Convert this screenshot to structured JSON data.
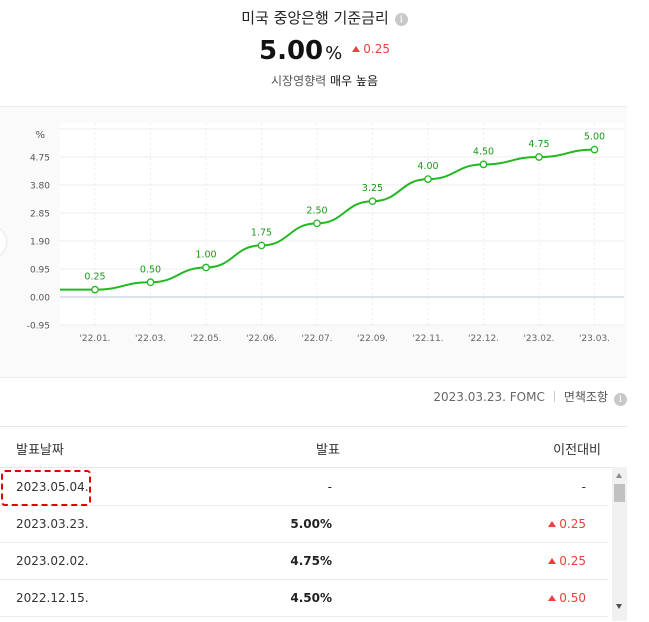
{
  "header": {
    "title": "미국 중앙은행 기준금리",
    "info_icon": "i",
    "rate_value": "5.00",
    "rate_unit": "%",
    "rate_change": "0.25",
    "impact_label": "시장영향력",
    "impact_level": "매우 높음"
  },
  "chart_data": {
    "type": "line",
    "y_unit_label": "%",
    "ytick_labels": [
      "4.75",
      "3.80",
      "2.85",
      "1.90",
      "0.95",
      "0.00",
      "-0.95"
    ],
    "ylim": [
      -0.95,
      5.7
    ],
    "xtick_labels": [
      "'22.01.",
      "'22.03.",
      "'22.05.",
      "'22.06.",
      "'22.07.",
      "'22.09.",
      "'22.11.",
      "'22.12.",
      "'23.02.",
      "'23.03."
    ],
    "series": [
      {
        "values": [
          0.25,
          0.5,
          1.0,
          1.75,
          2.5,
          3.25,
          4.0,
          4.5,
          4.75,
          5.0
        ],
        "labels": [
          "0.25",
          "0.50",
          "1.00",
          "1.75",
          "2.50",
          "3.25",
          "4.00",
          "4.50",
          "4.75",
          "5.00"
        ],
        "color": "#22b822"
      }
    ],
    "grid": true
  },
  "source": {
    "date": "2023.03.23. FOMC",
    "type": "면책조항",
    "info_icon": "i"
  },
  "table": {
    "columns": [
      "발표날짜",
      "발표",
      "이전대비"
    ],
    "rows": [
      {
        "date": "2023.05.04.",
        "value": "-",
        "prev": "-",
        "direction": "none"
      },
      {
        "date": "2023.03.23.",
        "value": "5.00%",
        "prev": "0.25",
        "direction": "up"
      },
      {
        "date": "2023.02.02.",
        "value": "4.75%",
        "prev": "0.25",
        "direction": "up"
      },
      {
        "date": "2022.12.15.",
        "value": "4.50%",
        "prev": "0.50",
        "direction": "up"
      }
    ]
  },
  "colors": {
    "accent_up": "#e8413e",
    "line": "#22b822",
    "highlight": "#e30000"
  }
}
